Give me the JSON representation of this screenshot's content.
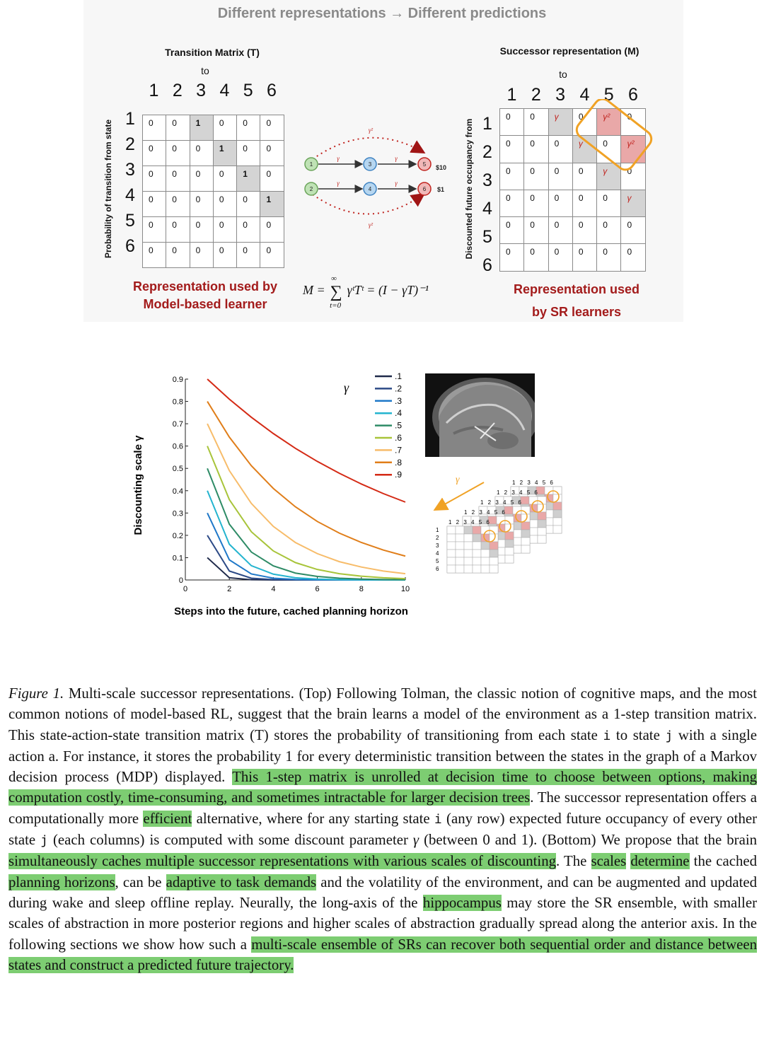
{
  "headline": "Different representations → Different predictions",
  "left_matrix": {
    "title": "Transition Matrix (T)",
    "to_label": "to",
    "row_axis_label": "Probability of transition from state",
    "col_labels": [
      "1",
      "2",
      "3",
      "4",
      "5",
      "6"
    ],
    "row_labels": [
      "1",
      "2",
      "3",
      "4",
      "5",
      "6"
    ],
    "cells": [
      [
        "0",
        "0",
        "1",
        "0",
        "0",
        "0"
      ],
      [
        "0",
        "0",
        "0",
        "1",
        "0",
        "0"
      ],
      [
        "0",
        "0",
        "0",
        "0",
        "1",
        "0"
      ],
      [
        "0",
        "0",
        "0",
        "0",
        "0",
        "1"
      ],
      [
        "0",
        "0",
        "0",
        "0",
        "0",
        "0"
      ],
      [
        "0",
        "0",
        "0",
        "0",
        "0",
        "0"
      ]
    ],
    "caption_line1": "Representation used by",
    "caption_line2": "Model-based learner"
  },
  "right_matrix": {
    "title": "Successor representation (M)",
    "to_label": "to",
    "row_axis_label": "Discounted future occupancy from",
    "col_labels": [
      "1",
      "2",
      "3",
      "4",
      "5",
      "6"
    ],
    "row_labels": [
      "1",
      "2",
      "3",
      "4",
      "5",
      "6"
    ],
    "cells": [
      [
        "0",
        "0",
        "γ",
        "0",
        "γ²",
        "0"
      ],
      [
        "0",
        "0",
        "0",
        "γ",
        "0",
        "γ²"
      ],
      [
        "0",
        "0",
        "0",
        "0",
        "γ",
        "0"
      ],
      [
        "0",
        "0",
        "0",
        "0",
        "0",
        "γ"
      ],
      [
        "0",
        "0",
        "0",
        "0",
        "0",
        "0"
      ],
      [
        "0",
        "0",
        "0",
        "0",
        "0",
        "0"
      ]
    ],
    "caption_line1": "Representation used",
    "caption_line2": "by SR learners"
  },
  "graph": {
    "nodes": [
      "1",
      "2",
      "3",
      "4",
      "5",
      "6"
    ],
    "edge_label": "γ",
    "arc_label": "γ²",
    "reward_5": "$10",
    "reward_6": "$1"
  },
  "formula": {
    "lhs": "M =",
    "sum_top": "∞",
    "sum_bottom": "t=0",
    "rhs": "γᵗTᵗ = (I − γT)⁻¹"
  },
  "stack_figure": {
    "gamma_label": "γ",
    "col_labels": "1 2 3 4 5 6",
    "row_labels": [
      "1",
      "2",
      "3",
      "4",
      "5",
      "6"
    ]
  },
  "chart_data": {
    "type": "line",
    "title": "",
    "xlabel": "Steps into the future, cached planning horizon",
    "ylabel": "Discounting scale γ",
    "xlim": [
      0,
      10
    ],
    "ylim": [
      0,
      0.9
    ],
    "xticks": [
      "0",
      "2",
      "4",
      "6",
      "8",
      "10"
    ],
    "yticks": [
      "0",
      "0.1",
      "0.2",
      "0.3",
      "0.4",
      "0.5",
      "0.6",
      "0.7",
      "0.8",
      "0.9"
    ],
    "legend_title": "γ",
    "legend_position": "top-right",
    "x": [
      1,
      2,
      3,
      4,
      5,
      6,
      7,
      8,
      9,
      10
    ],
    "series": [
      {
        "name": ".1",
        "color": "#1f2a4a",
        "values": [
          0.1,
          0.01,
          0.001,
          0.0001,
          1e-05,
          0,
          0,
          0,
          0,
          0
        ]
      },
      {
        "name": ".2",
        "color": "#2c4a86",
        "values": [
          0.2,
          0.04,
          0.008,
          0.0016,
          0.0003,
          0.0001,
          0,
          0,
          0,
          0
        ]
      },
      {
        "name": ".3",
        "color": "#1f78c8",
        "values": [
          0.3,
          0.09,
          0.027,
          0.008,
          0.0024,
          0.0007,
          0.0002,
          0.0001,
          0,
          0
        ]
      },
      {
        "name": ".4",
        "color": "#24b4cf",
        "values": [
          0.4,
          0.16,
          0.064,
          0.026,
          0.01,
          0.004,
          0.0016,
          0.0007,
          0.0003,
          0.0001
        ]
      },
      {
        "name": ".5",
        "color": "#2e8b66",
        "values": [
          0.5,
          0.25,
          0.125,
          0.063,
          0.031,
          0.016,
          0.008,
          0.004,
          0.002,
          0.001
        ]
      },
      {
        "name": ".6",
        "color": "#a8c43a",
        "values": [
          0.6,
          0.36,
          0.216,
          0.13,
          0.078,
          0.047,
          0.028,
          0.017,
          0.01,
          0.006
        ]
      },
      {
        "name": ".7",
        "color": "#f7bc6a",
        "values": [
          0.7,
          0.49,
          0.343,
          0.24,
          0.168,
          0.118,
          0.082,
          0.058,
          0.04,
          0.028
        ]
      },
      {
        "name": ".8",
        "color": "#e07e1a",
        "values": [
          0.8,
          0.64,
          0.512,
          0.41,
          0.328,
          0.262,
          0.21,
          0.168,
          0.134,
          0.107
        ]
      },
      {
        "name": ".9",
        "color": "#d42a15",
        "values": [
          0.9,
          0.81,
          0.729,
          0.656,
          0.59,
          0.531,
          0.478,
          0.43,
          0.387,
          0.349
        ]
      }
    ]
  },
  "caption": {
    "fig_label": "Figure 1.",
    "p1": " Multi-scale successor representations. (Top) Following Tolman, the classic notion of cognitive maps, and the most common notions of model-based RL, suggest that the brain learns a model of the environment as a 1-step transition matrix. This state-action-state transition matrix (T) stores the probability of transitioning from each state ",
    "i1": "i",
    "p2": " to state ",
    "j1": "j",
    "p3": " with a single action a. For instance, it stores the probability 1 for every deterministic transition between the states in the graph of a Markov decision process (MDP) displayed. ",
    "h1": "This 1-step matrix is unrolled at decision time to choose between options, making computation costly, time-consuming, and sometimes intractable for larger decision trees",
    "p4": ". The successor representation offers a computationally more ",
    "h2": "efficient",
    "p5": " alternative, where for any starting state ",
    "i2": "i",
    "p6": " (any row) expected future occupancy of every other state ",
    "j2": "j",
    "p7": " (each columns) is computed with some discount parameter ",
    "gamma": "γ",
    "p8": " (between 0 and 1). (Bottom) We propose that the brain ",
    "h3": "simultaneously caches multiple successor representations with various scales of discounting",
    "p9": ". The ",
    "h4": "scales",
    "p10": " ",
    "h5": "determine",
    "p11": " the cached ",
    "h6": "planning horizons",
    "p12": ", can be ",
    "h7": "adaptive to task demands",
    "p13": " and the volatility of the environment, and can be augmented and updated during wake and sleep offline replay. Neurally, the long-axis of the ",
    "h8": "hippocampus",
    "p14": " may store the SR ensemble, with smaller scales of abstraction in more posterior regions and higher scales of abstraction gradually spread along the anterior axis. In the following sections we show how such a ",
    "h9": "multi-scale ensemble of SRs can recover both sequential order and distance between states and construct a predicted future trajectory."
  }
}
